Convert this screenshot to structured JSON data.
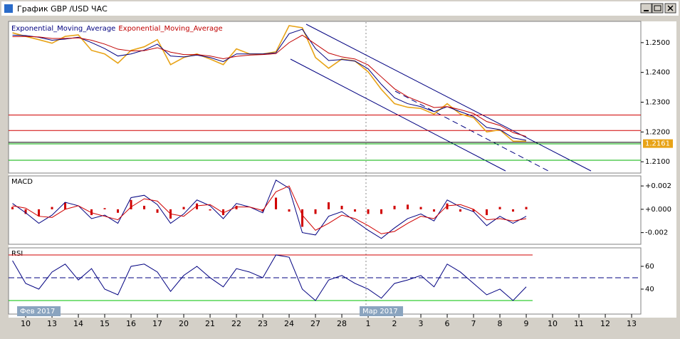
{
  "window": {
    "title": "График GBP /USD  ЧАС"
  },
  "chart_data": [
    {
      "type": "line",
      "legend": "top-left",
      "x": [
        -2,
        0,
        2,
        4,
        6,
        8,
        10,
        12,
        14,
        16,
        18,
        20,
        22,
        24,
        26,
        28,
        30,
        32,
        34,
        36,
        38,
        40,
        42,
        44,
        46,
        48,
        50,
        52,
        54,
        56,
        58,
        60,
        62,
        64,
        66,
        68,
        70,
        72,
        74,
        76
      ],
      "xlim": [
        -2.6,
        93.4
      ],
      "ylim": [
        1.2062,
        1.2569
      ],
      "yticks": [
        {
          "value": 1.25,
          "label": "1.2500"
        },
        {
          "value": 1.24,
          "label": "1.2400"
        },
        {
          "value": 1.23,
          "label": "1.2300"
        },
        {
          "value": 1.22,
          "label": "1.2200"
        },
        {
          "value": 1.21,
          "label": "1.2100"
        }
      ],
      "last_price": 1.2161,
      "last_price_color": "#e8a317",
      "levels": [
        {
          "value": 1.2257,
          "color": "#d00000"
        },
        {
          "value": 1.2205,
          "color": "#d00000"
        },
        {
          "value": 1.2165,
          "color": "#000000"
        },
        {
          "value": 1.216,
          "color": "#00b000"
        },
        {
          "value": 1.2105,
          "color": "#00b000"
        }
      ],
      "series": [
        {
          "color": "#e8a317",
          "values": [
            1.2533,
            1.2521,
            1.251,
            1.2498,
            1.2521,
            1.2526,
            1.2474,
            1.2462,
            1.2431,
            1.2474,
            1.2486,
            1.251,
            1.2426,
            1.245,
            1.2462,
            1.2445,
            1.2426,
            1.2479,
            1.2462,
            1.2462,
            1.2469,
            1.2557,
            1.255,
            1.245,
            1.2414,
            1.2445,
            1.2438,
            1.2402,
            1.2343,
            1.2295,
            1.2283,
            1.2279,
            1.226,
            1.2295,
            1.226,
            1.2248,
            1.22,
            1.2207,
            1.2169,
            1.2169
          ]
        },
        {
          "name": "Exponential_Moving_Average",
          "color": "#000080",
          "values": [
            1.2525,
            1.2524,
            1.2518,
            1.2508,
            1.2512,
            1.2518,
            1.25,
            1.248,
            1.2455,
            1.2462,
            1.2475,
            1.2495,
            1.2455,
            1.2452,
            1.2458,
            1.245,
            1.2436,
            1.2462,
            1.2462,
            1.2462,
            1.2466,
            1.253,
            1.2545,
            1.248,
            1.244,
            1.2443,
            1.2438,
            1.2412,
            1.236,
            1.2315,
            1.2295,
            1.2285,
            1.2268,
            1.2285,
            1.2268,
            1.2252,
            1.2215,
            1.2208,
            1.218,
            1.2172
          ]
        },
        {
          "name": "Exponential_Moving_Average",
          "color": "#c00000",
          "values": [
            1.252,
            1.2521,
            1.2519,
            1.2514,
            1.2514,
            1.2516,
            1.2508,
            1.2495,
            1.2478,
            1.2472,
            1.2473,
            1.2483,
            1.2468,
            1.246,
            1.246,
            1.2455,
            1.2446,
            1.2454,
            1.2458,
            1.246,
            1.2463,
            1.25,
            1.2525,
            1.2495,
            1.2465,
            1.2452,
            1.2445,
            1.2425,
            1.2385,
            1.2345,
            1.2318,
            1.23,
            1.2282,
            1.2285,
            1.2275,
            1.2262,
            1.2235,
            1.2222,
            1.2198,
            1.2185
          ]
        }
      ]
    },
    {
      "type": "macd",
      "title": "MACD",
      "x": [
        -2,
        0,
        2,
        4,
        6,
        8,
        10,
        12,
        14,
        16,
        18,
        20,
        22,
        24,
        26,
        28,
        30,
        32,
        34,
        36,
        38,
        40,
        42,
        44,
        46,
        48,
        50,
        52,
        54,
        56,
        58,
        60,
        62,
        64,
        66,
        68,
        70,
        72,
        74,
        76
      ],
      "xlim": [
        -2.6,
        93.4
      ],
      "ylim": [
        -0.003,
        0.0028
      ],
      "yticks": [
        {
          "value": 0.002,
          "label": "+0.002"
        },
        {
          "value": 0,
          "label": "+0.000"
        },
        {
          "value": -0.002,
          "label": "-0.002"
        }
      ],
      "series": [
        {
          "style": "bars",
          "color": "#d00000",
          "values": [
            0.0002,
            -0.0004,
            -0.0006,
            0.0002,
            0.0006,
            0,
            -0.0005,
            0.0001,
            -0.0003,
            0.0008,
            0.0003,
            -0.0003,
            -0.0008,
            0.0002,
            0.0005,
            -0.0001,
            -0.0005,
            0.0003,
            0,
            -0.0002,
            0.001,
            -0.0002,
            -0.0015,
            -0.0004,
            0.0006,
            0.0003,
            -0.0002,
            -0.0004,
            -0.0004,
            0.0003,
            0.0004,
            0.0002,
            -0.0002,
            0.0005,
            -0.0002,
            -0.0002,
            -0.0005,
            0.0002,
            -0.0002,
            0.0002
          ]
        },
        {
          "style": "line",
          "color": "#000080",
          "values": [
            0.0005,
            -0.0003,
            -0.0012,
            -0.0005,
            0.0006,
            0.0003,
            -0.0008,
            -0.0005,
            -0.0012,
            0.001,
            0.0012,
            0.0004,
            -0.0012,
            -0.0004,
            0.0008,
            0.0003,
            -0.0008,
            0.0005,
            0.0002,
            -0.0003,
            0.0025,
            0.0018,
            -0.002,
            -0.0022,
            -0.0006,
            -0.0002,
            -0.001,
            -0.0018,
            -0.0025,
            -0.0016,
            -0.0008,
            -0.0004,
            -0.001,
            0.0008,
            0.0002,
            -0.0002,
            -0.0014,
            -0.0006,
            -0.0012,
            -0.0006
          ]
        },
        {
          "style": "line",
          "color": "#d00000",
          "values": [
            0.0003,
            0.0001,
            -0.0006,
            -0.0007,
            0,
            0.0003,
            -0.0003,
            -0.0006,
            -0.0009,
            0.0002,
            0.0009,
            0.0007,
            -0.0004,
            -0.0006,
            0.0003,
            0.0004,
            -0.0003,
            0.0002,
            0.0002,
            -0.0001,
            0.0015,
            0.002,
            -0.0005,
            -0.0018,
            -0.0012,
            -0.0005,
            -0.0008,
            -0.0014,
            -0.0021,
            -0.0019,
            -0.0012,
            -0.0006,
            -0.0008,
            0.0003,
            0.0004,
            0,
            -0.0009,
            -0.0008,
            -0.001,
            -0.0008
          ]
        }
      ]
    },
    {
      "type": "rsi",
      "title": "RSI",
      "x": [
        -2,
        0,
        2,
        4,
        6,
        8,
        10,
        12,
        14,
        16,
        18,
        20,
        22,
        24,
        26,
        28,
        30,
        32,
        34,
        36,
        38,
        40,
        42,
        44,
        46,
        48,
        50,
        52,
        54,
        56,
        58,
        60,
        62,
        64,
        66,
        68,
        70,
        72,
        74,
        76
      ],
      "xlim": [
        -2.6,
        93.4
      ],
      "ylim": [
        18.1,
        75.6
      ],
      "yticks": [
        60,
        40
      ],
      "levels": [
        {
          "value": 70,
          "color": "#d00000"
        },
        {
          "value": 50,
          "color": "#000080",
          "dashed": true
        },
        {
          "value": 30,
          "color": "#00c000"
        }
      ],
      "xticks": [
        {
          "value": 0,
          "label": "10"
        },
        {
          "value": 4,
          "label": "13"
        },
        {
          "value": 8,
          "label": "14"
        },
        {
          "value": 12,
          "label": "15"
        },
        {
          "value": 16,
          "label": "16"
        },
        {
          "value": 20,
          "label": "17"
        },
        {
          "value": 24,
          "label": "20"
        },
        {
          "value": 28,
          "label": "21"
        },
        {
          "value": 32,
          "label": "22"
        },
        {
          "value": 36,
          "label": "23"
        },
        {
          "value": 40,
          "label": "24"
        },
        {
          "value": 44,
          "label": "27"
        },
        {
          "value": 48,
          "label": "28"
        },
        {
          "value": 52,
          "label": "1"
        },
        {
          "value": 56,
          "label": "2"
        },
        {
          "value": 60,
          "label": "3"
        },
        {
          "value": 64,
          "label": "6"
        },
        {
          "value": 68,
          "label": "7"
        },
        {
          "value": 72,
          "label": "8"
        },
        {
          "value": 76,
          "label": "9"
        },
        {
          "value": 80,
          "label": "10"
        },
        {
          "value": 84,
          "label": "11"
        },
        {
          "value": 88,
          "label": "12"
        },
        {
          "value": 92,
          "label": "13"
        }
      ],
      "period_labels": [
        {
          "value": 0,
          "label": "Фев 2017"
        },
        {
          "value": 52,
          "label": "Мар 2017"
        }
      ],
      "series": [
        {
          "color": "#000080",
          "values": [
            65,
            45,
            40,
            55,
            62,
            48,
            58,
            40,
            35,
            60,
            62,
            55,
            38,
            52,
            60,
            50,
            42,
            58,
            55,
            50,
            70,
            68,
            40,
            30,
            48,
            52,
            45,
            40,
            32,
            45,
            48,
            52,
            42,
            62,
            55,
            45,
            35,
            40,
            30,
            42
          ]
        }
      ]
    }
  ]
}
